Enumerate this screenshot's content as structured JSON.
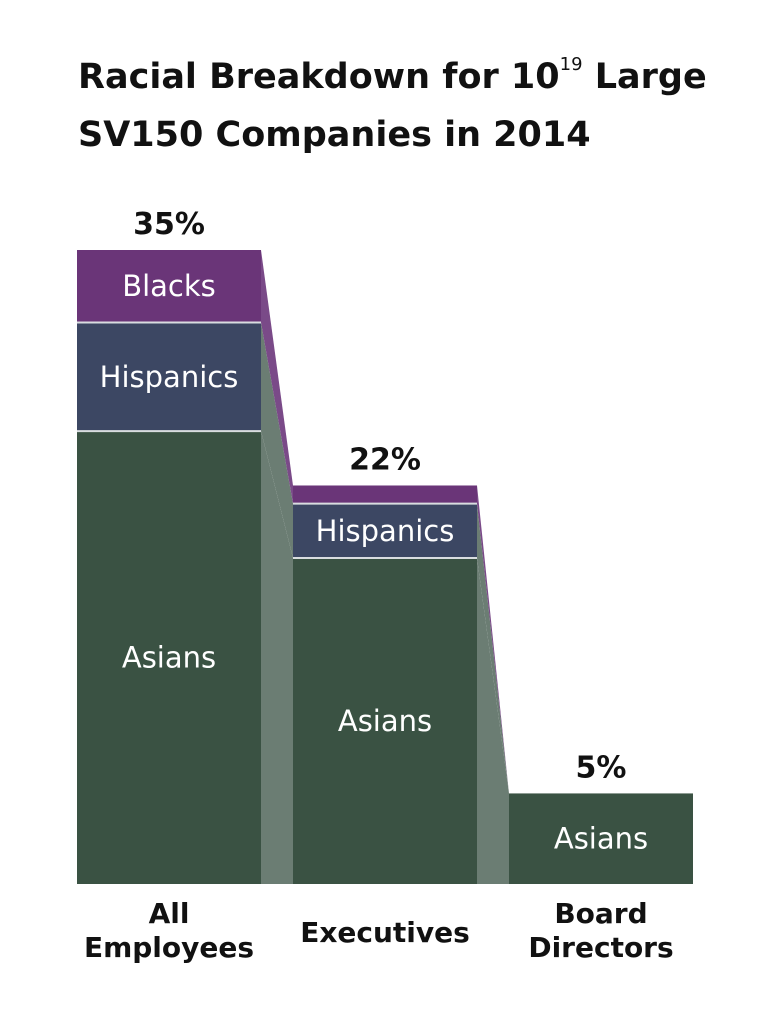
{
  "title": {
    "line1_prefix": "Racial Breakdown for 10",
    "superscript": "19",
    "line1_suffix": " Large",
    "line2": "SV150 Companies in 2014"
  },
  "colors": {
    "asians": "#3a5243",
    "hispanics": "#3c4763",
    "blacks": "#6a3578",
    "connector": "#6b7d73",
    "connector_purple": "#7a4a88"
  },
  "chart_data": {
    "type": "bar",
    "stacked": true,
    "title": "Racial Breakdown for 10^19 Large SV150 Companies in 2014",
    "categories": [
      {
        "label_lines": [
          "All",
          "Employees"
        ]
      },
      {
        "label_lines": [
          "Executives"
        ]
      },
      {
        "label_lines": [
          "Board",
          "Directors"
        ]
      }
    ],
    "totals": [
      "35%",
      "22%",
      "5%"
    ],
    "total_values": [
      35,
      22,
      5
    ],
    "series": [
      {
        "name": "Asians",
        "color": "#3a5243",
        "values": [
          25,
          18,
          5
        ],
        "show_label": [
          true,
          true,
          true
        ]
      },
      {
        "name": "Hispanics",
        "color": "#3c4763",
        "values": [
          6,
          3,
          0
        ],
        "show_label": [
          true,
          true,
          false
        ]
      },
      {
        "name": "Blacks",
        "color": "#6a3578",
        "values": [
          4,
          1,
          0
        ],
        "show_label": [
          true,
          false,
          false
        ]
      }
    ],
    "ylim": [
      0,
      35
    ],
    "xlabel": "",
    "ylabel": "",
    "grid": false
  }
}
